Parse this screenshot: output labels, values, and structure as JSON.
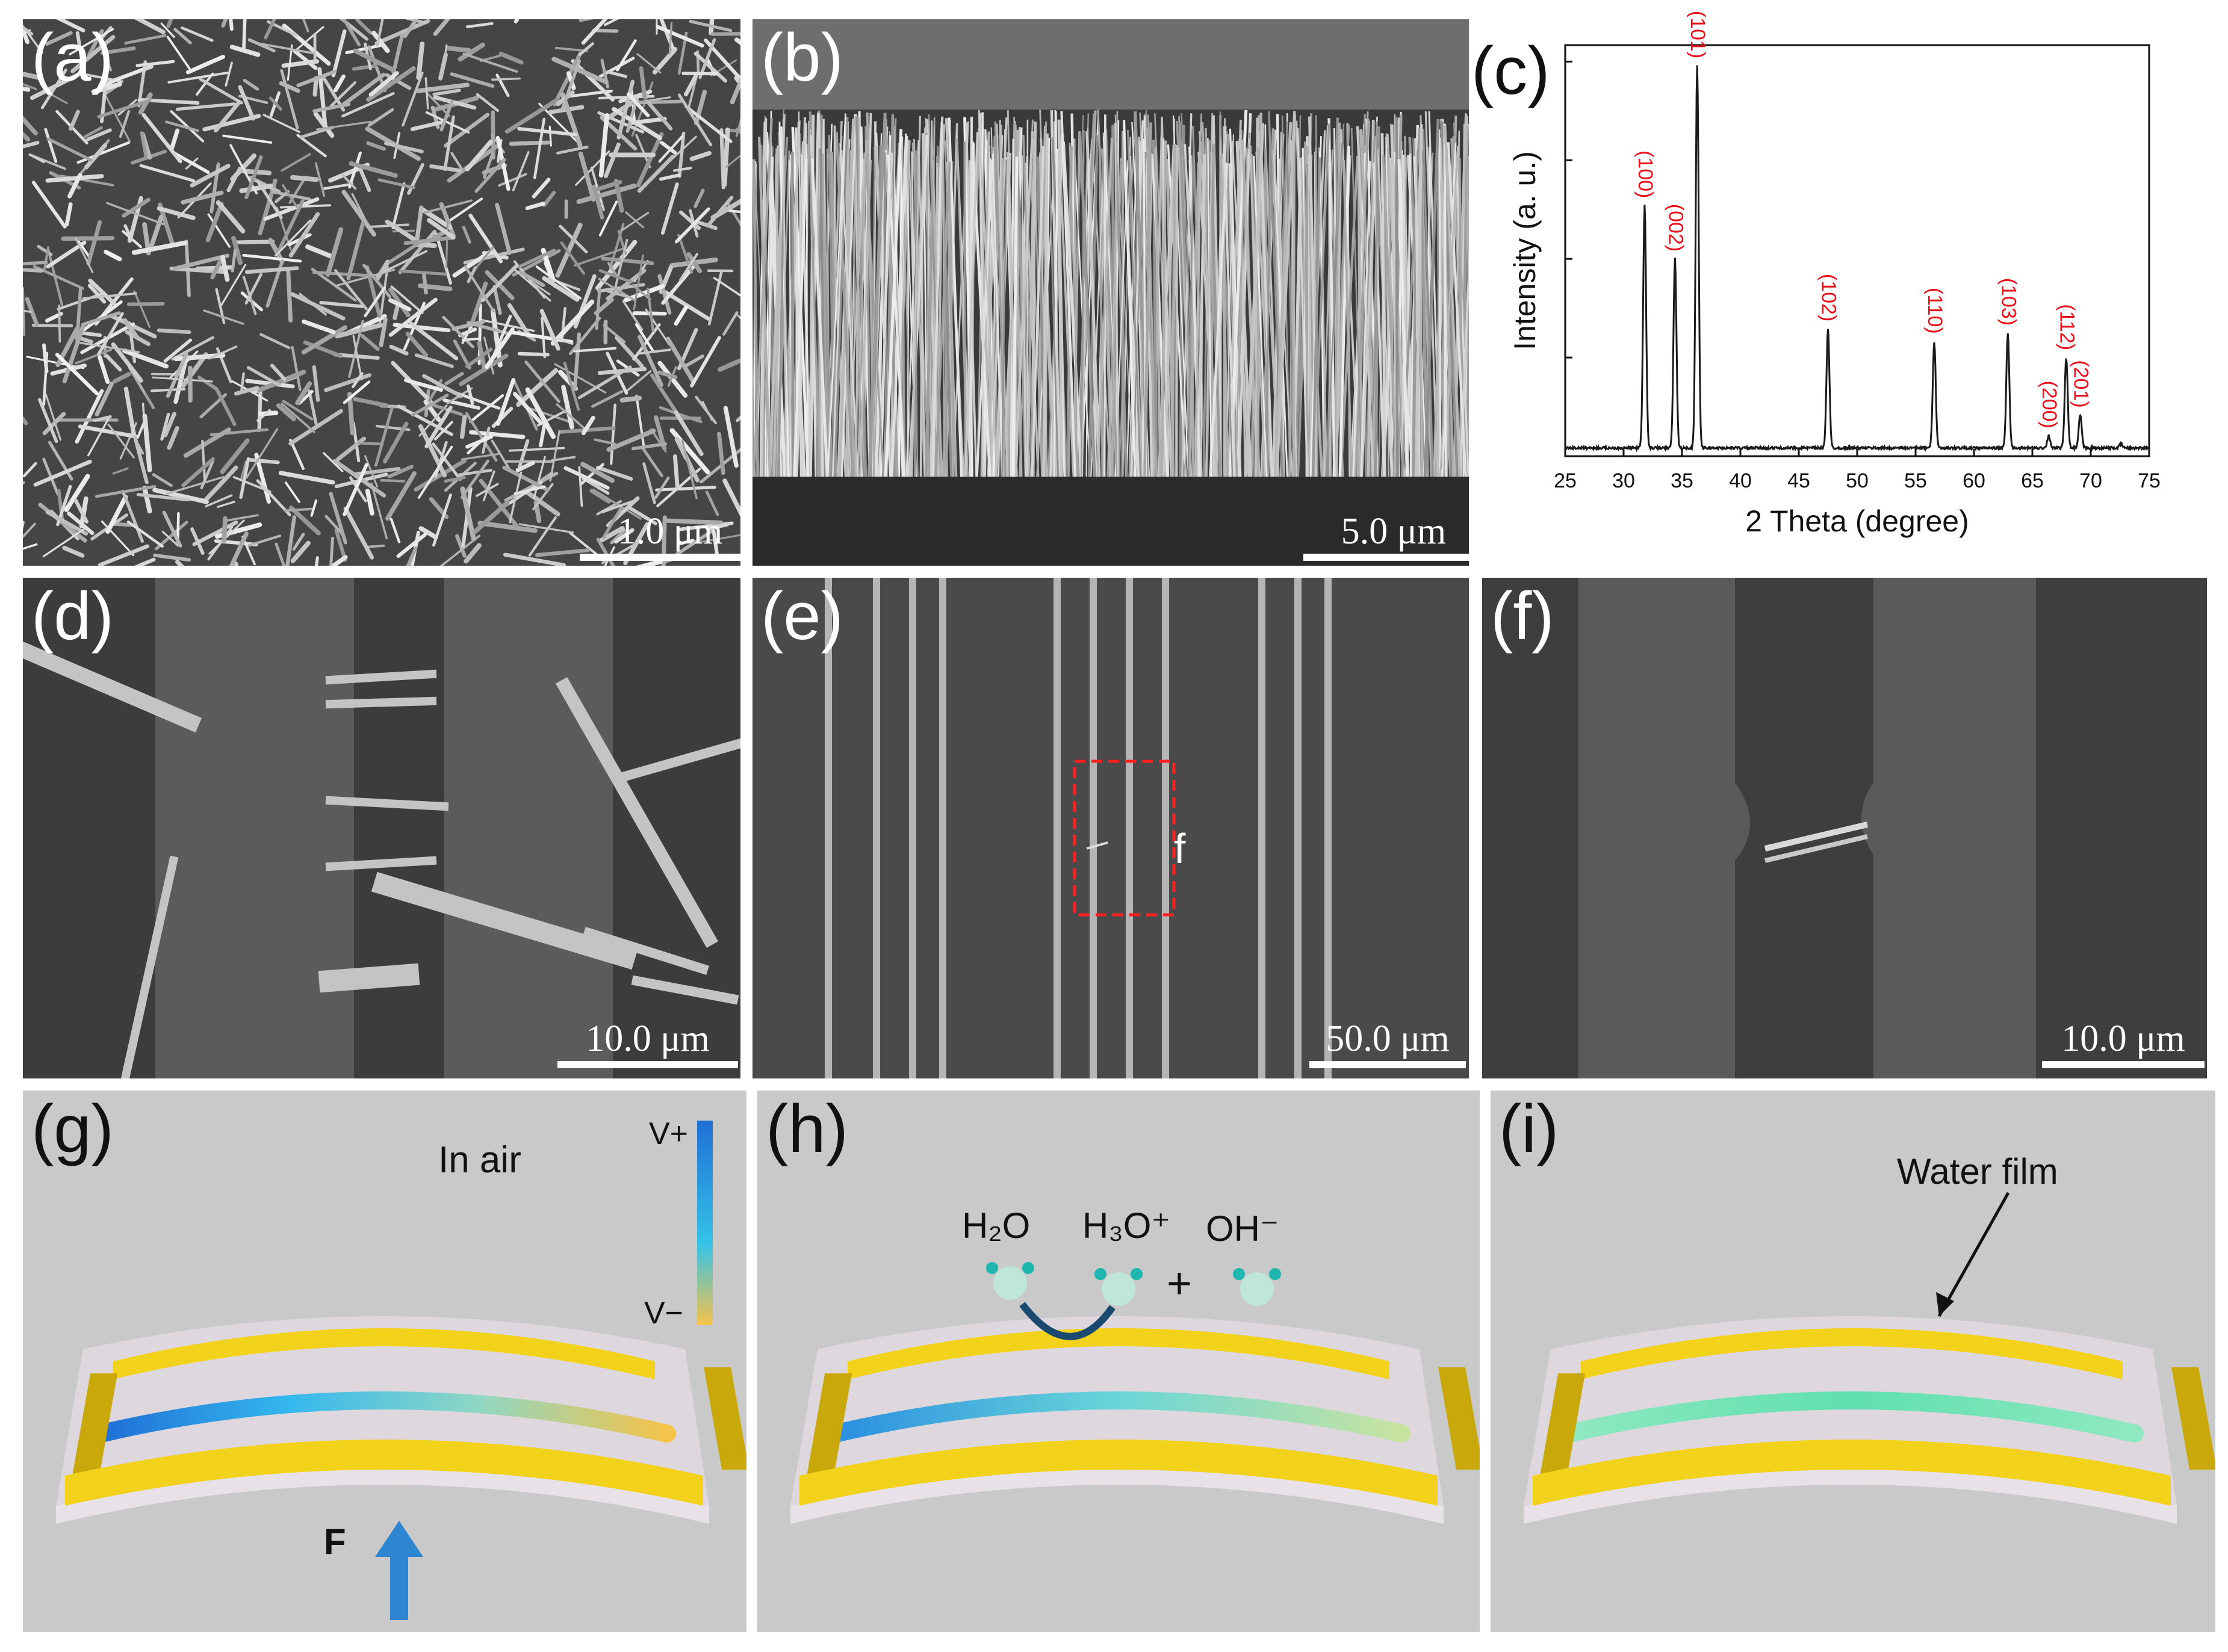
{
  "panels": {
    "a": {
      "label": "(a)",
      "scale": "1.0 μm"
    },
    "b": {
      "label": "(b)",
      "scale": "5.0 μm"
    },
    "c": {
      "label": "(c)"
    },
    "d": {
      "label": "(d)",
      "scale": "10.0 μm"
    },
    "e": {
      "label": "(e)",
      "scale": "50.0 μm",
      "inset_marker": "f"
    },
    "f": {
      "label": "(f)",
      "scale": "10.0 μm"
    },
    "g": {
      "label": "(g)",
      "condition": "In air",
      "colorbar_top": "V+",
      "colorbar_bottom": "V−",
      "force": "F"
    },
    "h": {
      "label": "(h)",
      "species": [
        "H₂O",
        "H₃O⁺",
        "OH⁻"
      ],
      "plus": "+"
    },
    "i": {
      "label": "(i)",
      "annotation": "Water film"
    }
  },
  "chart_data": {
    "type": "line",
    "title": "",
    "xlabel": "2 Theta (degree)",
    "ylabel": "Intensity (a. u.)",
    "xlim": [
      25,
      75
    ],
    "ylim": [
      0,
      1.0
    ],
    "xticks": [
      25,
      30,
      35,
      40,
      45,
      50,
      55,
      60,
      65,
      70,
      75
    ],
    "baseline": 0.02,
    "peaks": [
      {
        "x": 31.8,
        "y": 0.61,
        "label": "(100)"
      },
      {
        "x": 34.4,
        "y": 0.48,
        "label": "(002)"
      },
      {
        "x": 36.3,
        "y": 0.95,
        "label": "(101)"
      },
      {
        "x": 47.5,
        "y": 0.31,
        "label": "(102)"
      },
      {
        "x": 56.6,
        "y": 0.28,
        "label": "(110)"
      },
      {
        "x": 62.9,
        "y": 0.3,
        "label": "(103)"
      },
      {
        "x": 66.4,
        "y": 0.05,
        "label": "(200)"
      },
      {
        "x": 67.9,
        "y": 0.24,
        "label": "(112)"
      },
      {
        "x": 69.1,
        "y": 0.1,
        "label": "(201)"
      },
      {
        "x": 72.6,
        "y": 0.03,
        "label": ""
      }
    ],
    "grid": false,
    "line_color": "#1a1a1a",
    "peak_label_color": "#e8101a"
  },
  "colors": {
    "gold": "#f2d21a",
    "gold_dark": "#c9a80c",
    "nanowire_blue": "#1e9fe0",
    "nanowire_green": "#5fe0b0",
    "selection_box": "#ff2020"
  }
}
